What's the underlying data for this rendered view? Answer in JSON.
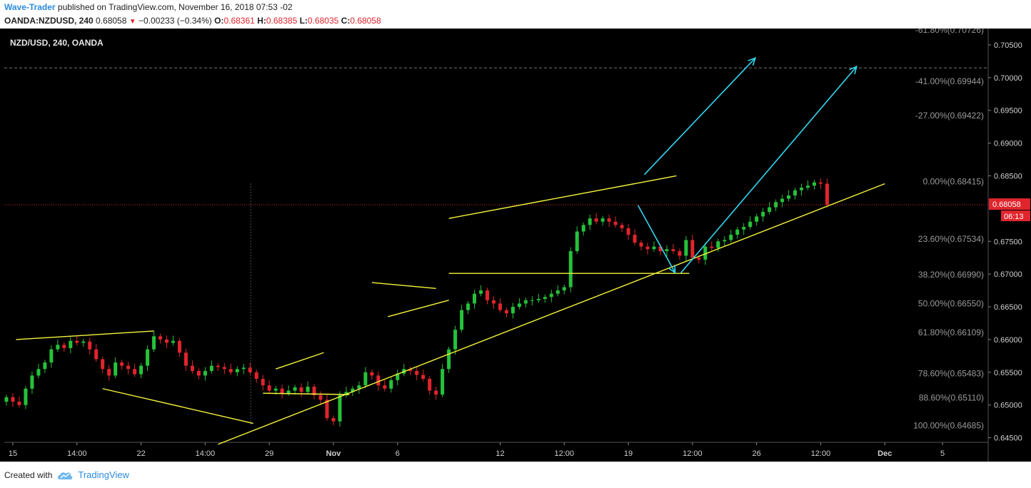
{
  "header": {
    "author": "Wave-Trader",
    "published_text": " published on TradingView.com, November 16, 2018 07:53 -02",
    "symbol_line": "OANDA:NZDUSD, 240",
    "last": "0.68058",
    "change": "−0.00233 (−0.34%)",
    "o_label": "O:",
    "o_val": "0.68361",
    "h_label": "H:",
    "h_val": "0.68385",
    "l_label": "L:",
    "l_val": "0.68035",
    "c_label": "C:",
    "c_val": "0.68058"
  },
  "footer": {
    "created_with": "Created with",
    "brand": "TradingView"
  },
  "colors": {
    "background": "#000000",
    "up": "#26c23a",
    "down": "#e0252d",
    "trendline": "#f5f53c",
    "arrow": "#33d6ee",
    "fib_text": "#9a9a9a",
    "price_badge": "#e0252d"
  },
  "chart_data": {
    "type": "candlestick",
    "title": "NZD/USD, 240, OANDA",
    "ylim": [
      0.6443,
      0.7075
    ],
    "x_ticks": [
      {
        "i": 1,
        "label": "15"
      },
      {
        "i": 11,
        "label": "14:00"
      },
      {
        "i": 21,
        "label": "22"
      },
      {
        "i": 31,
        "label": "14:00"
      },
      {
        "i": 41,
        "label": "29"
      },
      {
        "i": 51,
        "label": "Nov"
      },
      {
        "i": 61,
        "label": "6"
      },
      {
        "i": 77,
        "label": "12"
      },
      {
        "i": 87,
        "label": "12:00"
      },
      {
        "i": 97,
        "label": "19"
      },
      {
        "i": 107,
        "label": "12:00"
      },
      {
        "i": 117,
        "label": "26"
      },
      {
        "i": 127,
        "label": "12:00"
      },
      {
        "i": 137,
        "label": "Dec"
      },
      {
        "i": 146,
        "label": "5"
      }
    ],
    "y_ticks": [
      0.705,
      0.7,
      0.695,
      0.69,
      0.685,
      0.675,
      0.67,
      0.665,
      0.66,
      0.655,
      0.65,
      0.645
    ],
    "current_price": {
      "value": 0.68058,
      "label": "0.68058",
      "countdown": "06:13"
    },
    "fib_levels": [
      {
        "value": 0.70726,
        "label": "-61.80%(0.70726)"
      },
      {
        "value": 0.69944,
        "label": "-41.00%(0.69944)"
      },
      {
        "value": 0.69422,
        "label": "-27.00%(0.69422)"
      },
      {
        "value": 0.68415,
        "label": "0.00%(0.68415)"
      },
      {
        "value": 0.67534,
        "label": "23.60%(0.67534)"
      },
      {
        "value": 0.6699,
        "label": "38.20%(0.66990)"
      },
      {
        "value": 0.6655,
        "label": "50.00%(0.66550)"
      },
      {
        "value": 0.66109,
        "label": "61.80%(0.66109)"
      },
      {
        "value": 0.65483,
        "label": "78.60%(0.65483)"
      },
      {
        "value": 0.6511,
        "label": "88.60%(0.65110)"
      },
      {
        "value": 0.64685,
        "label": "100.00%(0.64685)"
      }
    ],
    "reference_line": 0.7015,
    "closes": [
      0.6512,
      0.6505,
      0.65,
      0.6525,
      0.6545,
      0.6555,
      0.6565,
      0.6585,
      0.6592,
      0.6587,
      0.6598,
      0.6595,
      0.6597,
      0.6585,
      0.657,
      0.6555,
      0.6545,
      0.6565,
      0.656,
      0.6555,
      0.6547,
      0.656,
      0.6585,
      0.6605,
      0.66,
      0.6595,
      0.6598,
      0.658,
      0.656,
      0.6552,
      0.6545,
      0.6552,
      0.656,
      0.6558,
      0.6555,
      0.655,
      0.6555,
      0.6557,
      0.655,
      0.654,
      0.653,
      0.6522,
      0.6525,
      0.6518,
      0.6522,
      0.6527,
      0.652,
      0.6528,
      0.6515,
      0.6508,
      0.648,
      0.6475,
      0.6515,
      0.652,
      0.6525,
      0.653,
      0.655,
      0.6545,
      0.653,
      0.6525,
      0.6538,
      0.6548,
      0.6555,
      0.6552,
      0.6546,
      0.654,
      0.6522,
      0.6516,
      0.6555,
      0.6585,
      0.6615,
      0.6645,
      0.6655,
      0.667,
      0.6675,
      0.666,
      0.6655,
      0.6645,
      0.664,
      0.665,
      0.6655,
      0.666,
      0.666,
      0.6662,
      0.6665,
      0.667,
      0.6675,
      0.668,
      0.6735,
      0.6765,
      0.6775,
      0.6785,
      0.678,
      0.6785,
      0.678,
      0.6775,
      0.677,
      0.676,
      0.6748,
      0.6742,
      0.6738,
      0.6742,
      0.6735,
      0.6738,
      0.6735,
      0.6728,
      0.6752,
      0.6725,
      0.6722,
      0.6742,
      0.674,
      0.675,
      0.6752,
      0.676,
      0.6768,
      0.6772,
      0.678,
      0.6788,
      0.6795,
      0.6802,
      0.681,
      0.6815,
      0.682,
      0.6828,
      0.6832,
      0.6835,
      0.684,
      0.6838,
      0.6806
    ]
  }
}
